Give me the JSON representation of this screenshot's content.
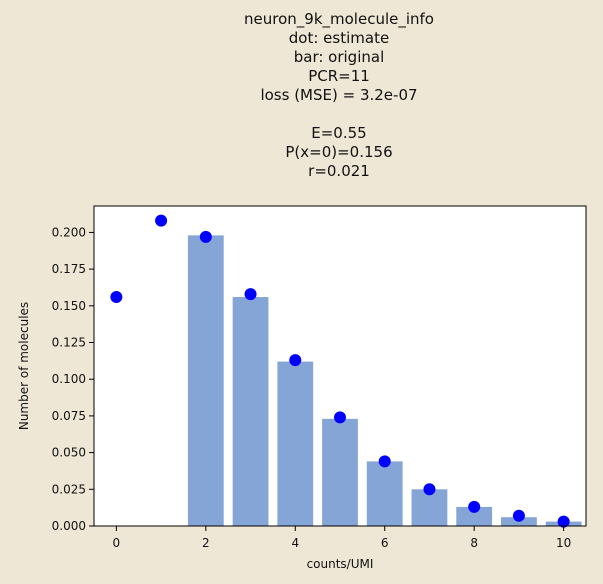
{
  "chart_data": {
    "type": "bar",
    "title_lines": [
      "neuron_9k_molecule_info",
      "dot: estimate",
      "bar: original",
      "PCR=11",
      "loss (MSE) = 3.2e-07",
      "",
      "E=0.55",
      "P(x=0)=0.156",
      "r=0.021"
    ],
    "xlabel": "counts/UMI",
    "ylabel": "Number of molecules",
    "xlim": [
      -0.5,
      10.5
    ],
    "ylim": [
      0,
      0.218
    ],
    "xticks": [
      0,
      2,
      4,
      6,
      8,
      10
    ],
    "yticks": [
      0.0,
      0.025,
      0.05,
      0.075,
      0.1,
      0.125,
      0.15,
      0.175,
      0.2
    ],
    "ytick_labels": [
      "0.000",
      "0.025",
      "0.050",
      "0.075",
      "0.100",
      "0.125",
      "0.150",
      "0.175",
      "0.200"
    ],
    "bars": {
      "name": "original",
      "color": "#85a5d6",
      "x": [
        2,
        3,
        4,
        5,
        6,
        7,
        8,
        9,
        10
      ],
      "values": [
        0.198,
        0.156,
        0.112,
        0.073,
        0.044,
        0.025,
        0.013,
        0.006,
        0.003
      ]
    },
    "dots": {
      "name": "estimate",
      "color": "#0000ff",
      "x": [
        0,
        1,
        2,
        3,
        4,
        5,
        6,
        7,
        8,
        9,
        10
      ],
      "values": [
        0.156,
        0.208,
        0.197,
        0.158,
        0.113,
        0.074,
        0.044,
        0.025,
        0.013,
        0.007,
        0.003
      ]
    },
    "grid": false,
    "legend": "none"
  }
}
